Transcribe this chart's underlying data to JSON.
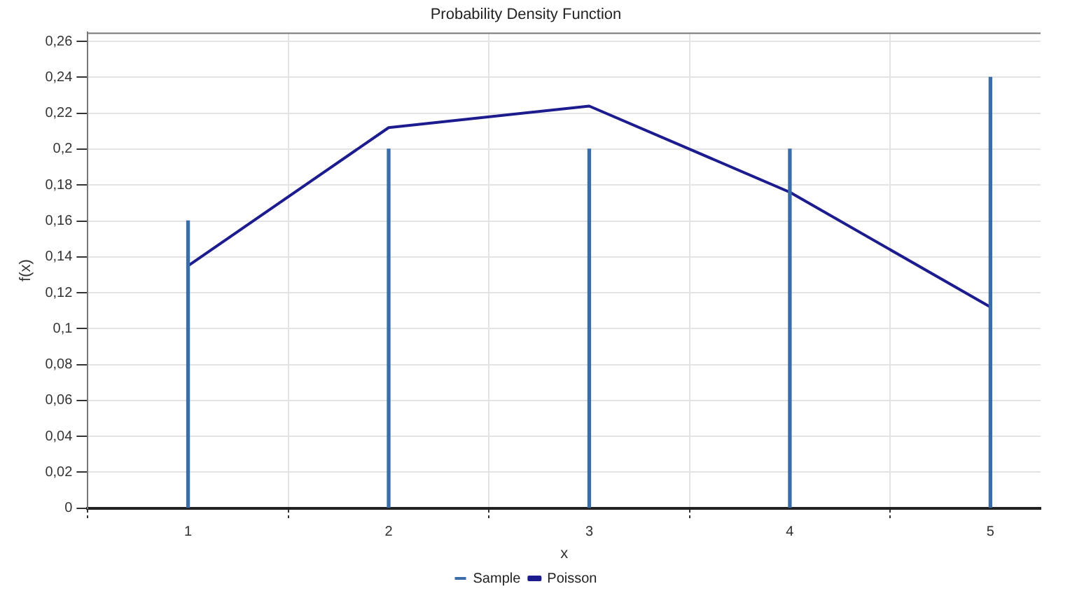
{
  "chart_data": {
    "type": "line",
    "title": "Probability Density Function",
    "xlabel": "x",
    "ylabel": "f(x)",
    "x": [
      1,
      2,
      3,
      4,
      5
    ],
    "series": [
      {
        "name": "Sample",
        "type": "bar",
        "color": "#3b6ea8",
        "values": [
          0.16,
          0.2,
          0.2,
          0.2,
          0.24
        ]
      },
      {
        "name": "Poisson",
        "color": "#1c1c8f",
        "values": [
          0.135,
          0.212,
          0.224,
          0.176,
          0.112
        ]
      }
    ],
    "xlim": [
      0.5,
      5.25
    ],
    "xticks": [
      1,
      2,
      3,
      4,
      5
    ],
    "ylim": [
      0,
      0.265
    ],
    "yticks": [
      {
        "value": 0,
        "label": "0"
      },
      {
        "value": 0.02,
        "label": "0,02"
      },
      {
        "value": 0.04,
        "label": "0,04"
      },
      {
        "value": 0.06,
        "label": "0,06"
      },
      {
        "value": 0.08,
        "label": "0,08"
      },
      {
        "value": 0.1,
        "label": "0,1"
      },
      {
        "value": 0.12,
        "label": "0,12"
      },
      {
        "value": 0.14,
        "label": "0,14"
      },
      {
        "value": 0.16,
        "label": "0,16"
      },
      {
        "value": 0.18,
        "label": "0,18"
      },
      {
        "value": 0.2,
        "label": "0,2"
      },
      {
        "value": 0.22,
        "label": "0,22"
      },
      {
        "value": 0.24,
        "label": "0,24"
      },
      {
        "value": 0.26,
        "label": "0,26"
      }
    ],
    "grid": true,
    "legend": "bottom",
    "marker": "none",
    "line_style": "solid"
  }
}
